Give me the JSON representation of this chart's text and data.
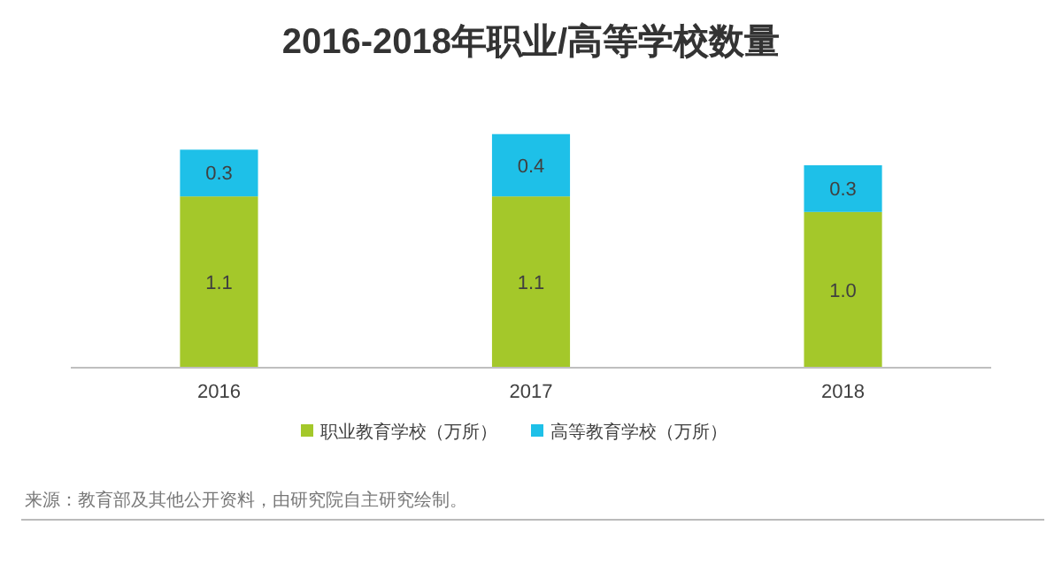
{
  "chart_data": {
    "type": "bar",
    "title": "2016-2018年职业/高等学校数量",
    "categories": [
      "2016",
      "2017",
      "2018"
    ],
    "stacked": true,
    "legend": "bottom",
    "series": [
      {
        "name": "职业教育学校（万所）",
        "color": "#a4c82a",
        "values": [
          1.1,
          1.1,
          1.0
        ],
        "value_labels": [
          "1.1",
          "1.1",
          "1.0"
        ]
      },
      {
        "name": "高等教育学校（万所）",
        "color": "#1ec0e8",
        "values": [
          0.3,
          0.4,
          0.3
        ],
        "value_labels": [
          "0.3",
          "0.4",
          "0.3"
        ]
      }
    ],
    "annotations": [
      "来源：教育部及其他公开资料，由研究院自主研究绘制。"
    ]
  }
}
